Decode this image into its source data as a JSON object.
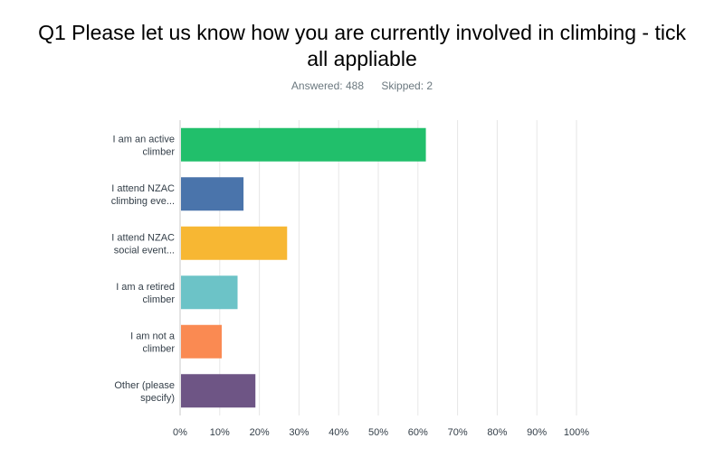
{
  "header": {
    "title": "Q1 Please let us know how you are currently involved in climbing - tick all appliable",
    "answered_label": "Answered:",
    "answered_value": "488",
    "skipped_label": "Skipped:",
    "skipped_value": "2"
  },
  "chart_data": {
    "type": "bar",
    "orientation": "horizontal",
    "title": "Q1 Please let us know how you are currently involved in climbing - tick all appliable",
    "xlabel": "",
    "ylabel": "",
    "xlim": [
      0,
      100
    ],
    "grid": true,
    "categories": [
      [
        "I am an active",
        "climber"
      ],
      [
        "I attend NZAC",
        "climbing eve..."
      ],
      [
        "I attend NZAC",
        "social event..."
      ],
      [
        "I am a retired",
        "climber"
      ],
      [
        "I am not a",
        "climber"
      ],
      [
        "Other (please",
        "specify)"
      ]
    ],
    "values": [
      62,
      16,
      27,
      14.5,
      10.5,
      19
    ],
    "colors": [
      "#21bf6b",
      "#4a74ab",
      "#f7b733",
      "#6cc3c7",
      "#fa8a52",
      "#6e5585"
    ],
    "x_ticks": [
      "0%",
      "10%",
      "20%",
      "30%",
      "40%",
      "50%",
      "60%",
      "70%",
      "80%",
      "90%",
      "100%"
    ]
  }
}
